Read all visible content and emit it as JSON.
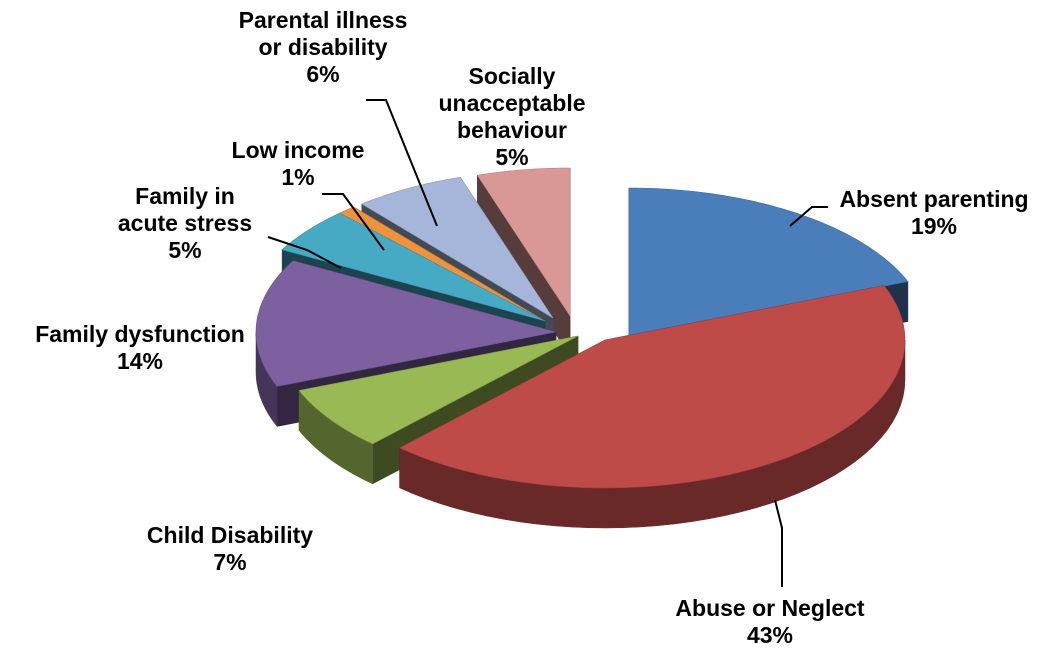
{
  "chart_data": {
    "type": "pie",
    "three_d": true,
    "exploded": true,
    "title": "",
    "legend": "none",
    "slices": [
      {
        "label": [
          "Absent parenting"
        ],
        "value": 19,
        "value_label": "19%",
        "color": "#4A7EBB"
      },
      {
        "label": [
          "Abuse or Neglect"
        ],
        "value": 43,
        "value_label": "43%",
        "color": "#BE4B48"
      },
      {
        "label": [
          "Child Disability"
        ],
        "value": 7,
        "value_label": "7%",
        "color": "#98B954"
      },
      {
        "label": [
          "Family dysfunction"
        ],
        "value": 14,
        "value_label": "14%",
        "color": "#7D60A0"
      },
      {
        "label": [
          "Family in",
          "acute stress"
        ],
        "value": 5,
        "value_label": "5%",
        "color": "#46AAC5"
      },
      {
        "label": [
          "Low income"
        ],
        "value": 1,
        "value_label": "1%",
        "color": "#F0923B"
      },
      {
        "label": [
          "Parental illness",
          "or disability"
        ],
        "value": 6,
        "value_label": "6%",
        "color": "#A5B6DA"
      },
      {
        "label": [
          "Socially",
          "unacceptable",
          "behaviour"
        ],
        "value": 5,
        "value_label": "5%",
        "color": "#D99795"
      }
    ]
  }
}
